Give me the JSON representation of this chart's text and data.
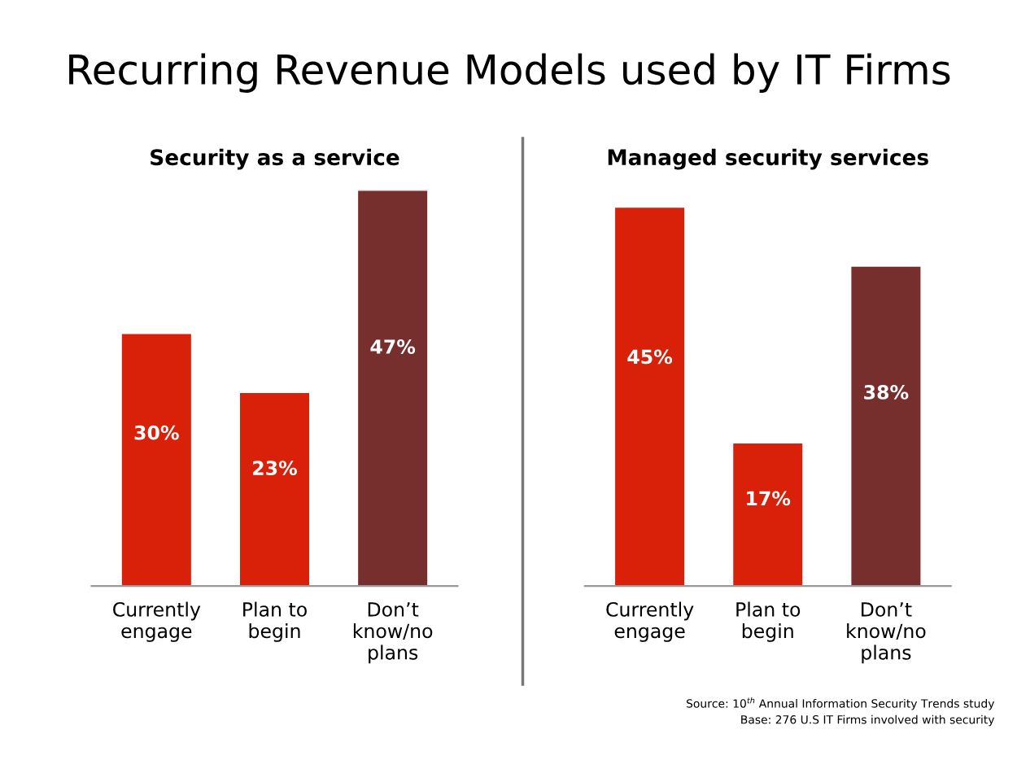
{
  "chart_data": [
    {
      "type": "bar",
      "title": "Recurring Revenue Models used by IT Firms",
      "subtitle": "Security as a service",
      "categories": [
        "Currently\nengage",
        "Plan to\nbegin",
        "Don’t\nknow/no\nplans"
      ],
      "values": [
        30,
        23,
        47
      ],
      "colors": [
        "#d9210a",
        "#d9210a",
        "#772f2d"
      ],
      "value_labels": [
        "30%",
        "23%",
        "47%"
      ],
      "grid": false,
      "legend": false
    },
    {
      "type": "bar",
      "subtitle": "Managed security services",
      "categories": [
        "Currently\nengage",
        "Plan to\nbegin",
        "Don’t\nknow/no\nplans"
      ],
      "values": [
        45,
        17,
        38
      ],
      "colors": [
        "#d9210a",
        "#d9210a",
        "#772f2d"
      ],
      "value_labels": [
        "45%",
        "17%",
        "38%"
      ],
      "grid": false,
      "legend": false,
      "annotations": [
        "Source: 10$^{th}$ Annual Information Security Trends study",
        "Base: 276 U.S IT Firms involved with security"
      ]
    }
  ]
}
